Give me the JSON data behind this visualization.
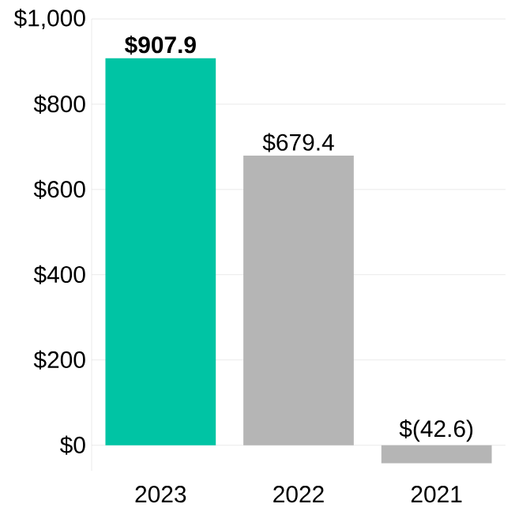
{
  "chart_data": {
    "type": "bar",
    "categories": [
      "2023",
      "2022",
      "2021"
    ],
    "values": [
      907.9,
      679.4,
      -42.6
    ],
    "colors": [
      "#00c4a4",
      "#b5b5b5",
      "#b5b5b5"
    ],
    "value_labels": [
      "**$907.9**",
      "$679.4",
      "$(42.6)"
    ],
    "ylim": [
      -60,
      1000
    ],
    "yticks": [
      {
        "value": 0,
        "label": "$0"
      },
      {
        "value": 200,
        "label": "$200"
      },
      {
        "value": 400,
        "label": "$400"
      },
      {
        "value": 600,
        "label": "$600"
      },
      {
        "value": 800,
        "label": "$800"
      },
      {
        "value": 1000,
        "label": "$1,000"
      }
    ],
    "grid": "y"
  }
}
